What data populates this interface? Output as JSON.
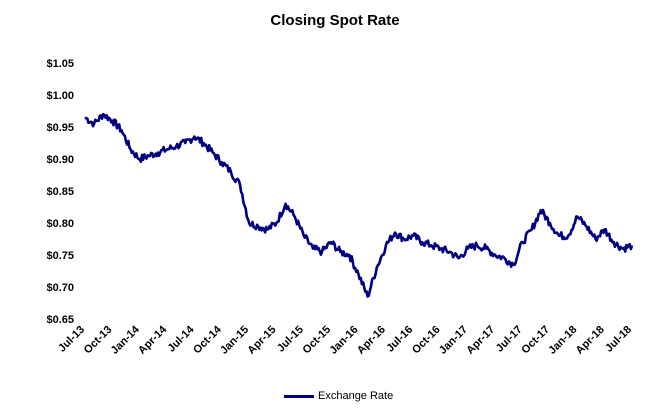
{
  "chart_data": {
    "type": "line",
    "title": "Closing Spot Rate",
    "xlabel": "",
    "ylabel": "",
    "ylim": [
      0.65,
      1.05
    ],
    "yticks": [
      "$0.65",
      "$0.70",
      "$0.75",
      "$0.80",
      "$0.85",
      "$0.90",
      "$0.95",
      "$1.00",
      "$1.05"
    ],
    "yticks_values": [
      0.65,
      0.7,
      0.75,
      0.8,
      0.85,
      0.9,
      0.95,
      1.0,
      1.05
    ],
    "xticks": [
      "Jul-13",
      "Oct-13",
      "Jan-14",
      "Apr-14",
      "Jul-14",
      "Oct-14",
      "Jan-15",
      "Apr-15",
      "Jul-15",
      "Oct-15",
      "Jan-16",
      "Apr-16",
      "Jul-16",
      "Oct-16",
      "Jan-17",
      "Apr-17",
      "Jul-17",
      "Oct-17",
      "Jan-18",
      "Apr-18",
      "Jul-18"
    ],
    "grid": false,
    "legend": "bottom",
    "series": [
      {
        "name": "Exchange Rate",
        "color": "#000080",
        "x": [
          "Jul-13",
          "Aug-13",
          "Sep-13",
          "Oct-13",
          "Nov-13",
          "Dec-13",
          "Jan-14",
          "Feb-14",
          "Mar-14",
          "Apr-14",
          "May-14",
          "Jun-14",
          "Jul-14",
          "Aug-14",
          "Sep-14",
          "Oct-14",
          "Nov-14",
          "Dec-14",
          "Jan-15",
          "Feb-15",
          "Mar-15",
          "Apr-15",
          "May-15",
          "Jun-15",
          "Jul-15",
          "Aug-15",
          "Sep-15",
          "Oct-15",
          "Nov-15",
          "Dec-15",
          "Jan-16",
          "Feb-16",
          "Mar-16",
          "Apr-16",
          "May-16",
          "Jun-16",
          "Jul-16",
          "Aug-16",
          "Sep-16",
          "Oct-16",
          "Nov-16",
          "Dec-16",
          "Jan-17",
          "Feb-17",
          "Mar-17",
          "Apr-17",
          "May-17",
          "Jun-17",
          "Jul-17",
          "Aug-17",
          "Sep-17",
          "Oct-17",
          "Nov-17",
          "Dec-17",
          "Jan-18",
          "Feb-18",
          "Mar-18",
          "Apr-18",
          "May-18",
          "Jun-18",
          "Jul-18"
        ],
        "values": [
          0.965,
          0.955,
          0.97,
          0.96,
          0.945,
          0.915,
          0.9,
          0.905,
          0.91,
          0.915,
          0.92,
          0.925,
          0.935,
          0.925,
          0.91,
          0.895,
          0.88,
          0.86,
          0.8,
          0.795,
          0.79,
          0.8,
          0.83,
          0.81,
          0.78,
          0.76,
          0.755,
          0.77,
          0.755,
          0.75,
          0.72,
          0.685,
          0.73,
          0.765,
          0.785,
          0.775,
          0.78,
          0.77,
          0.765,
          0.76,
          0.755,
          0.745,
          0.76,
          0.765,
          0.76,
          0.75,
          0.745,
          0.735,
          0.77,
          0.79,
          0.82,
          0.8,
          0.78,
          0.78,
          0.81,
          0.795,
          0.775,
          0.79,
          0.77,
          0.76,
          0.765
        ]
      }
    ]
  }
}
